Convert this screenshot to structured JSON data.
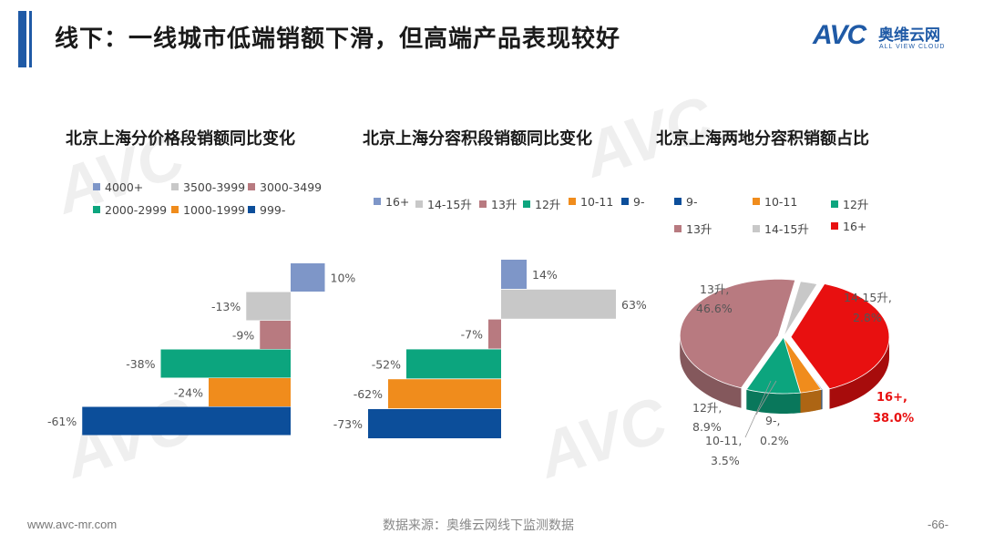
{
  "header": {
    "title": "线下：一线城市低端销额下滑，但高端产品表现较好",
    "logo_mark": "AVC",
    "logo_cn": "奥维云网",
    "logo_en": "ALL VIEW CLOUD"
  },
  "colors": {
    "accent": "#1f5aa6",
    "c_4000": "#7e96c8",
    "c_3500": "#c8c8c8",
    "c_3000": "#b87a80",
    "c_2000": "#0ca57e",
    "c_1000": "#f08c1c",
    "c_999": "#0c4e9a",
    "c_16": "#e81010",
    "c_9": "#0c4e9a"
  },
  "chart_data": [
    {
      "type": "bar",
      "title": "北京上海分价格段销额同比变化",
      "legend": [
        "4000+",
        "3500-3999",
        "3000-3499",
        "2000-2999",
        "1000-1999",
        "999-"
      ],
      "categories": [
        "4000+",
        "3500-3999",
        "3000-3499",
        "2000-2999",
        "1000-1999",
        "999-"
      ],
      "values": [
        10,
        -13,
        -9,
        -38,
        -24,
        -61
      ],
      "labels": [
        "10%",
        "-13%",
        "-9%",
        "-38%",
        "-24%",
        "-61%"
      ],
      "colors": [
        "#7e96c8",
        "#c8c8c8",
        "#b87a80",
        "#0ca57e",
        "#f08c1c",
        "#0c4e9a"
      ],
      "orientation": "horizontal"
    },
    {
      "type": "bar",
      "title": "北京上海分容积段销额同比变化",
      "legend": [
        "16+",
        "14-15升",
        "13升",
        "12升",
        "10-11",
        "9-"
      ],
      "categories": [
        "16+",
        "14-15升",
        "13升",
        "12升",
        "10-11",
        "9-"
      ],
      "values": [
        14,
        63,
        -7,
        -52,
        -62,
        -73
      ],
      "labels": [
        "14%",
        "63%",
        "-7%",
        "-52%",
        "-62%",
        "-73%"
      ],
      "colors": [
        "#7e96c8",
        "#c8c8c8",
        "#b87a80",
        "#0ca57e",
        "#f08c1c",
        "#0c4e9a"
      ],
      "orientation": "horizontal"
    },
    {
      "type": "pie",
      "title": "北京上海两地分容积销额占比",
      "legend": [
        "9-",
        "10-11",
        "12升",
        "13升",
        "14-15升",
        "16+"
      ],
      "categories": [
        "9-",
        "10-11",
        "12升",
        "13升",
        "14-15升",
        "16+"
      ],
      "values": [
        0.2,
        3.5,
        8.9,
        46.6,
        2.8,
        38.0
      ],
      "label_names": [
        "9-,",
        "10-11,",
        "12升,",
        "13升,",
        "14-15升,",
        "16+,"
      ],
      "label_values": [
        "0.2%",
        "3.5%",
        "8.9%",
        "46.6%",
        "2.8%",
        "38.0%"
      ],
      "colors": [
        "#0c4e9a",
        "#f08c1c",
        "#0ca57e",
        "#b87a80",
        "#c8c8c8",
        "#e81010"
      ]
    }
  ],
  "footer": {
    "website": "www.avc-mr.com",
    "source": "数据来源：奥维云网线下监测数据",
    "page": "-66-"
  }
}
